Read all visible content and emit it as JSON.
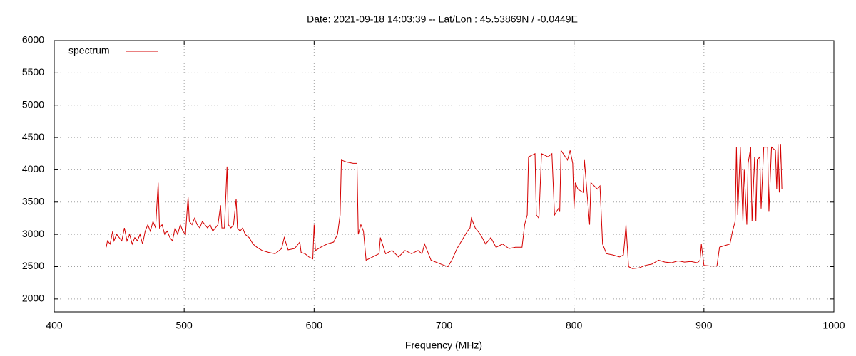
{
  "chart_data": {
    "type": "line",
    "title": "Date: 2021-09-18 14:03:39  --  Lat/Lon : 45.53869N / -0.0449E",
    "x_label": "Frequency (MHz)",
    "xlim": [
      400,
      1000
    ],
    "xticks": [
      400,
      500,
      600,
      700,
      800,
      900,
      1000
    ],
    "ylim": [
      1800,
      6000
    ],
    "yticks": [
      2000,
      2500,
      3000,
      3500,
      4000,
      4500,
      5000,
      5500,
      6000
    ],
    "grid": true,
    "legend": "top-left",
    "x": [
      440,
      441,
      443,
      445,
      446,
      448,
      450,
      452,
      454,
      456,
      458,
      460,
      462,
      464,
      466,
      468,
      470,
      472,
      474,
      476,
      478,
      480,
      481,
      483,
      485,
      487,
      489,
      491,
      493,
      495,
      497,
      499,
      501,
      503,
      504,
      506,
      508,
      510,
      512,
      514,
      516,
      518,
      520,
      522,
      524,
      526,
      528,
      529,
      531,
      533,
      534,
      536,
      538,
      540,
      541,
      543,
      545,
      547,
      550,
      553,
      556,
      560,
      565,
      570,
      575,
      577,
      580,
      585,
      589,
      590,
      593,
      596,
      599,
      600,
      601,
      605,
      610,
      615,
      618,
      620,
      621,
      625,
      630,
      633,
      634,
      636,
      638,
      640,
      645,
      650,
      651,
      655,
      660,
      665,
      670,
      675,
      680,
      683,
      685,
      690,
      695,
      700,
      703,
      706,
      710,
      715,
      718,
      720,
      721,
      724,
      728,
      732,
      736,
      740,
      745,
      750,
      755,
      760,
      762,
      764,
      765,
      770,
      771,
      773,
      775,
      780,
      783,
      785,
      788,
      789,
      790,
      795,
      797,
      799,
      800,
      801,
      803,
      807,
      808,
      810,
      812,
      813,
      818,
      820,
      822,
      825,
      830,
      835,
      838,
      839,
      840,
      842,
      845,
      850,
      855,
      860,
      865,
      870,
      875,
      880,
      885,
      890,
      895,
      897,
      898,
      900,
      905,
      910,
      912,
      915,
      920,
      922,
      924,
      925,
      926,
      928,
      930,
      931,
      933,
      934,
      936,
      937,
      939,
      940,
      941,
      943,
      944,
      946,
      949,
      950,
      952,
      955,
      956,
      957,
      958,
      959,
      960
    ],
    "series": [
      {
        "name": "spectrum",
        "color": "#d40000",
        "values": [
          2800,
          2900,
          2850,
          3050,
          2900,
          3000,
          2950,
          2900,
          3100,
          2900,
          3000,
          2850,
          2950,
          2900,
          3000,
          2850,
          3050,
          3150,
          3050,
          3200,
          3100,
          3800,
          3100,
          3150,
          3000,
          3050,
          2950,
          2900,
          3100,
          3000,
          3150,
          3050,
          3000,
          3580,
          3200,
          3150,
          3250,
          3150,
          3100,
          3200,
          3150,
          3100,
          3150,
          3050,
          3100,
          3150,
          3450,
          3100,
          3100,
          4050,
          3150,
          3100,
          3150,
          3550,
          3100,
          3050,
          3100,
          3000,
          2950,
          2850,
          2800,
          2750,
          2720,
          2700,
          2780,
          2950,
          2760,
          2780,
          2880,
          2720,
          2700,
          2650,
          2620,
          3150,
          2750,
          2800,
          2850,
          2880,
          3000,
          3300,
          4150,
          4120,
          4100,
          4100,
          3000,
          3150,
          3050,
          2600,
          2650,
          2700,
          2950,
          2700,
          2750,
          2650,
          2750,
          2700,
          2750,
          2700,
          2850,
          2600,
          2560,
          2520,
          2500,
          2600,
          2780,
          2950,
          3050,
          3100,
          3250,
          3100,
          3000,
          2850,
          2950,
          2800,
          2850,
          2780,
          2800,
          2800,
          3150,
          3300,
          4200,
          4250,
          3300,
          3250,
          4250,
          4200,
          4250,
          3300,
          3400,
          3350,
          4300,
          4150,
          4300,
          4100,
          3400,
          3800,
          3700,
          3650,
          4150,
          3650,
          3150,
          3800,
          3700,
          3750,
          2850,
          2700,
          2680,
          2650,
          2680,
          2900,
          3150,
          2500,
          2470,
          2480,
          2520,
          2540,
          2600,
          2570,
          2560,
          2590,
          2570,
          2580,
          2560,
          2600,
          2850,
          2520,
          2510,
          2510,
          2800,
          2820,
          2850,
          3050,
          3200,
          4350,
          3300,
          4350,
          3200,
          4000,
          3150,
          4100,
          4350,
          3200,
          4200,
          3200,
          4150,
          4200,
          3400,
          4350,
          4350,
          3350,
          4350,
          4300,
          3700,
          4400,
          3650,
          4400,
          3700
        ]
      }
    ]
  }
}
